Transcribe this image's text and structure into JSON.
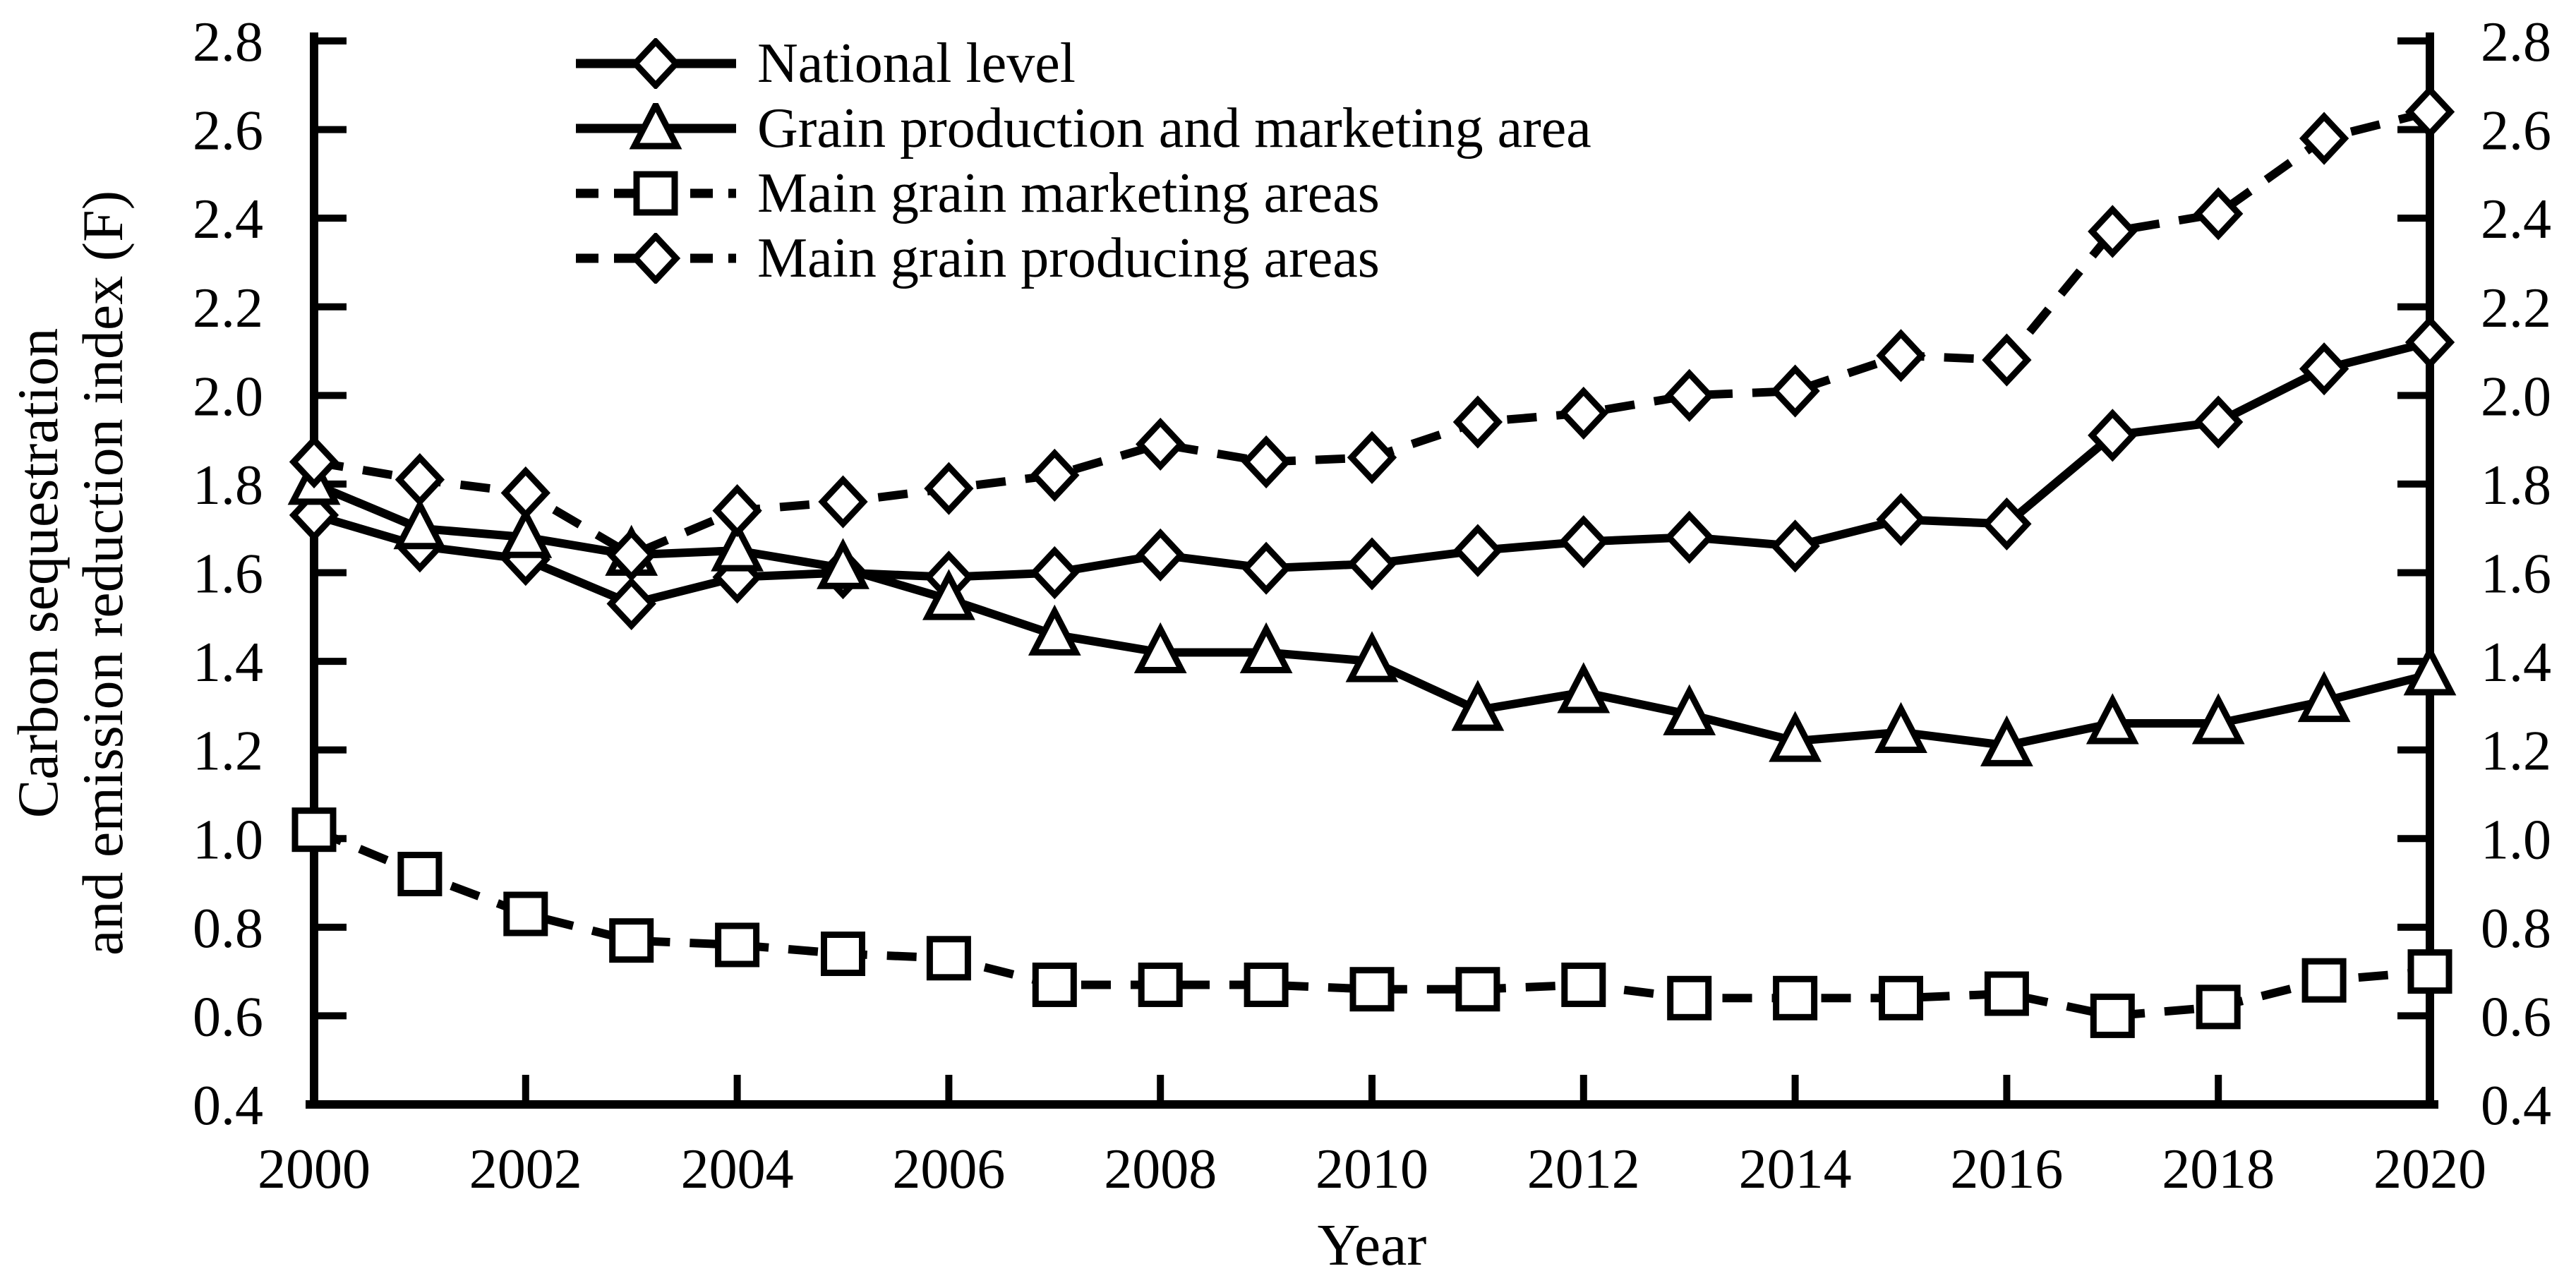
{
  "chart_data": {
    "type": "line",
    "title": "",
    "xlabel": "Year",
    "ylabel": "Carbon sequestration and emission reduction index (F)",
    "ylabel_lines": [
      "Carbon sequestration",
      "and emission reduction index (F)"
    ],
    "x": [
      2000,
      2001,
      2002,
      2003,
      2004,
      2005,
      2006,
      2007,
      2008,
      2009,
      2010,
      2011,
      2012,
      2013,
      2014,
      2015,
      2016,
      2017,
      2018,
      2019,
      2020
    ],
    "x_tick_labels": [
      "2000",
      "2002",
      "2004",
      "2006",
      "2008",
      "2010",
      "2012",
      "2014",
      "2016",
      "2018",
      "2020"
    ],
    "ylim": [
      0.4,
      2.8
    ],
    "ytick_step": 0.2,
    "grid": false,
    "legend_position": "top-left",
    "axis_color": "#000000",
    "background_color": "#ffffff",
    "series": [
      {
        "name": "National level",
        "marker": "diamond",
        "line": "solid",
        "values": [
          1.73,
          1.66,
          1.63,
          1.53,
          1.59,
          1.6,
          1.59,
          1.6,
          1.64,
          1.61,
          1.62,
          1.65,
          1.67,
          1.68,
          1.66,
          1.72,
          1.71,
          1.91,
          1.94,
          2.06,
          2.12
        ]
      },
      {
        "name": "Grain production and marketing area",
        "marker": "triangle",
        "line": "solid",
        "values": [
          1.8,
          1.7,
          1.68,
          1.64,
          1.65,
          1.61,
          1.54,
          1.46,
          1.42,
          1.42,
          1.4,
          1.29,
          1.33,
          1.28,
          1.22,
          1.24,
          1.21,
          1.26,
          1.26,
          1.31,
          1.37
        ]
      },
      {
        "name": "Main grain marketing areas",
        "marker": "square",
        "line": "dashed",
        "values": [
          1.02,
          0.92,
          0.83,
          0.77,
          0.76,
          0.74,
          0.73,
          0.67,
          0.67,
          0.67,
          0.66,
          0.66,
          0.67,
          0.64,
          0.64,
          0.64,
          0.65,
          0.6,
          0.62,
          0.68,
          0.7
        ]
      },
      {
        "name": "Main grain producing areas",
        "marker": "diamond",
        "line": "dashed",
        "values": [
          1.85,
          1.81,
          1.78,
          1.64,
          1.74,
          1.76,
          1.79,
          1.82,
          1.89,
          1.85,
          1.86,
          1.94,
          1.96,
          2.0,
          2.01,
          2.09,
          2.08,
          2.37,
          2.41,
          2.58,
          2.64
        ]
      }
    ]
  }
}
